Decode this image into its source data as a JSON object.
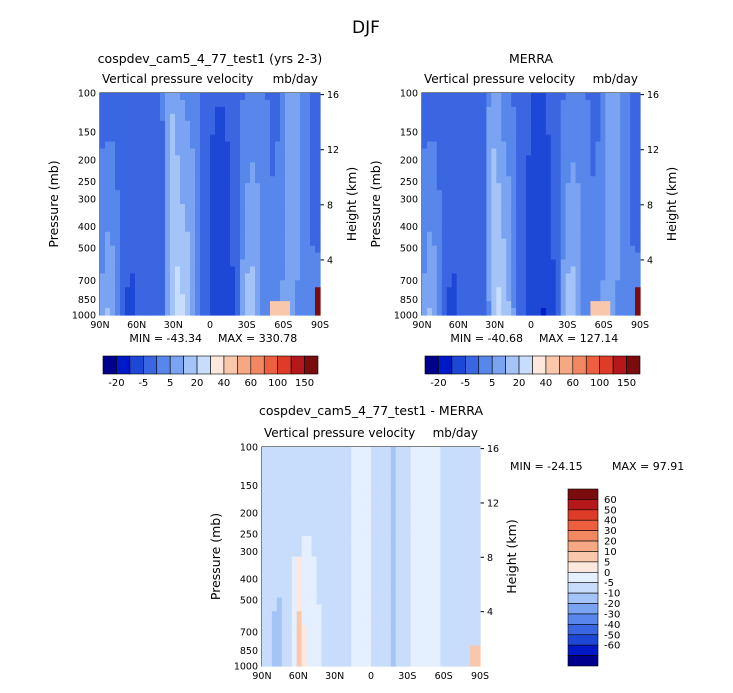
{
  "figure": {
    "title": "DJF"
  },
  "colors": {
    "top_scale": [
      "#00008f",
      "#0019c8",
      "#1d48d6",
      "#3a66e2",
      "#5787ea",
      "#7aa4f2",
      "#a4c4f8",
      "#c8dcfb",
      "#fce8dc",
      "#f9c8ac",
      "#f6a884",
      "#f28862",
      "#ec6040",
      "#dd3c28",
      "#b5181a",
      "#7a0c0e"
    ],
    "diff_scale": [
      "#7a0c0e",
      "#b5181a",
      "#dd3c28",
      "#ec6040",
      "#f28862",
      "#f6a884",
      "#f9c8ac",
      "#fce8dc",
      "#e4efff",
      "#c8dcfb",
      "#a4c4f8",
      "#7aa4f2",
      "#5787ea",
      "#3a66e2",
      "#1d48d6",
      "#0019c8",
      "#00008f"
    ]
  },
  "chart_data": [
    {
      "type": "heatmap",
      "title": "cospdev_cam5_4_77_test1 (yrs 2-3)",
      "subtitle_left": "Vertical pressure velocity",
      "subtitle_right": "mb/day",
      "xlabel": "",
      "ylabel": "Pressure (mb)",
      "y2label": "Height (km)",
      "x_ticks": [
        "90N",
        "60N",
        "30N",
        "0",
        "30S",
        "60S",
        "90S"
      ],
      "y_ticks": [
        100,
        150,
        200,
        250,
        300,
        400,
        500,
        700,
        850,
        1000
      ],
      "y2_ticks": [
        16,
        12,
        8,
        4
      ],
      "ylim": [
        1000,
        100
      ],
      "min_label": "MIN = -43.34",
      "max_label": "MAX = 330.78",
      "colorbar_labels": [
        "-20",
        "-5",
        "5",
        "20",
        "40",
        "60",
        "100",
        "150"
      ],
      "colorbar_levels": [
        -50,
        -40,
        -30,
        -20,
        -15,
        -10,
        -5,
        0,
        5,
        10,
        20,
        30,
        40,
        60,
        80,
        100,
        150
      ]
    },
    {
      "type": "heatmap",
      "title": "MERRA",
      "subtitle_left": "Vertical pressure velocity",
      "subtitle_right": "mb/day",
      "xlabel": "",
      "ylabel": "Pressure (mb)",
      "y2label": "Height (km)",
      "x_ticks": [
        "90N",
        "60N",
        "30N",
        "0",
        "30S",
        "60S",
        "90S"
      ],
      "y_ticks": [
        100,
        150,
        200,
        250,
        300,
        400,
        500,
        700,
        850,
        1000
      ],
      "y2_ticks": [
        16,
        12,
        8,
        4
      ],
      "ylim": [
        1000,
        100
      ],
      "min_label": "MIN = -40.68",
      "max_label": "MAX = 127.14",
      "colorbar_labels": [
        "-20",
        "-5",
        "5",
        "20",
        "40",
        "60",
        "100",
        "150"
      ],
      "colorbar_levels": [
        -50,
        -40,
        -30,
        -20,
        -15,
        -10,
        -5,
        0,
        5,
        10,
        20,
        30,
        40,
        60,
        80,
        100,
        150
      ]
    },
    {
      "type": "heatmap",
      "title": "cospdev_cam5_4_77_test1 - MERRA",
      "subtitle_left": "Vertical pressure velocity",
      "subtitle_right": "mb/day",
      "xlabel": "",
      "ylabel": "Pressure (mb)",
      "y2label": "Height (km)",
      "x_ticks": [
        "90N",
        "60N",
        "30N",
        "0",
        "30S",
        "60S",
        "90S"
      ],
      "y_ticks": [
        100,
        150,
        200,
        250,
        300,
        400,
        500,
        700,
        850,
        1000
      ],
      "y2_ticks": [
        16,
        12,
        8,
        4
      ],
      "ylim": [
        1000,
        100
      ],
      "min_label": "MIN = -24.15",
      "max_label": "MAX =  97.91",
      "colorbar_labels": [
        "60",
        "50",
        "40",
        "30",
        "20",
        "10",
        "5",
        "0",
        "-5",
        "-10",
        "-20",
        "-30",
        "-40",
        "-50",
        "-60"
      ]
    }
  ]
}
